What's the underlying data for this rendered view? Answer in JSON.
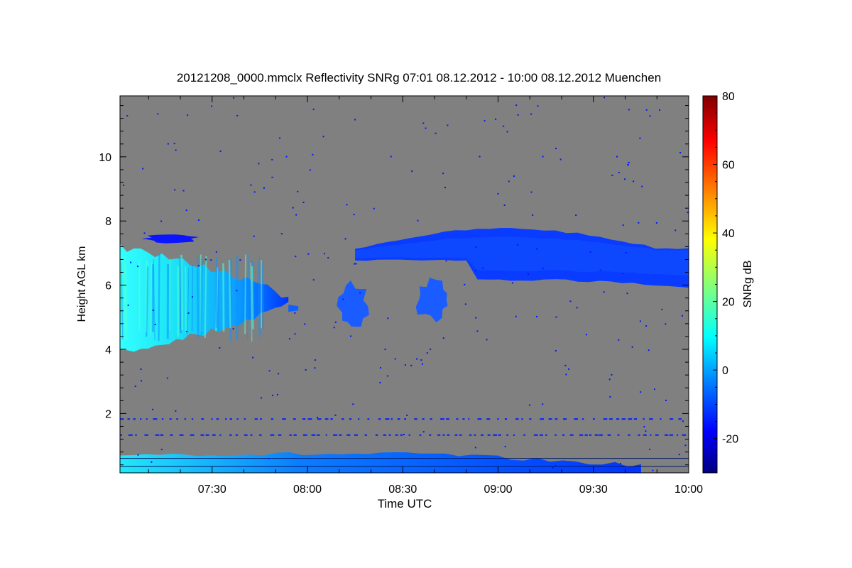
{
  "chart_data": {
    "type": "heatmap",
    "title": "20121208_0000.mmclx Reflectivity SNRg   07:01 08.12.2012 - 10:00 08.12.2012 Muenchen",
    "xlabel": "Time UTC",
    "ylabel": "Height AGL km",
    "colorbar_label": "SNRg dB",
    "xlim": [
      "07:01",
      "10:00"
    ],
    "ylim": [
      0.15,
      11.9
    ],
    "clim": [
      -30,
      80
    ],
    "x_ticks": [
      "07:30",
      "08:00",
      "08:30",
      "09:00",
      "09:30",
      "10:00"
    ],
    "y_ticks": [
      2,
      4,
      6,
      8,
      10
    ],
    "colorbar_ticks": [
      -20,
      0,
      20,
      40,
      60,
      80
    ],
    "background_color": "#808080",
    "colormap": [
      "#00007f",
      "#0000ff",
      "#007fff",
      "#00ffff",
      "#7fff7f",
      "#ffff00",
      "#ff7f00",
      "#ff0000",
      "#7f0000"
    ],
    "features": [
      {
        "name": "ice cloud",
        "time_start": "07:01",
        "time_end": "07:54",
        "height_bottom_km": 3.9,
        "height_top_km": 7.2,
        "snr_max_db": 10
      },
      {
        "name": "high cloud patch",
        "time_start": "07:07",
        "time_end": "07:27",
        "height_bottom_km": 7.3,
        "height_top_km": 7.6,
        "snr_max_db": -22
      },
      {
        "name": "cloud fragment",
        "time_start": "08:09",
        "time_end": "08:20",
        "height_bottom_km": 4.5,
        "height_top_km": 6.2,
        "snr_max_db": -12
      },
      {
        "name": "cloud fragment",
        "time_start": "08:33",
        "time_end": "08:46",
        "height_bottom_km": 4.8,
        "height_top_km": 6.3,
        "snr_max_db": -12
      },
      {
        "name": "cirrus layer",
        "time_start": "08:15",
        "time_end": "10:00",
        "height_bottom_km": 6.2,
        "height_top_km": 7.8,
        "snr_max_db": -15
      },
      {
        "name": "boundary layer echo",
        "time_start": "07:01",
        "time_end": "09:45",
        "height_bottom_km": 0.15,
        "height_top_km": 0.8,
        "snr_max_db": 5
      }
    ]
  }
}
